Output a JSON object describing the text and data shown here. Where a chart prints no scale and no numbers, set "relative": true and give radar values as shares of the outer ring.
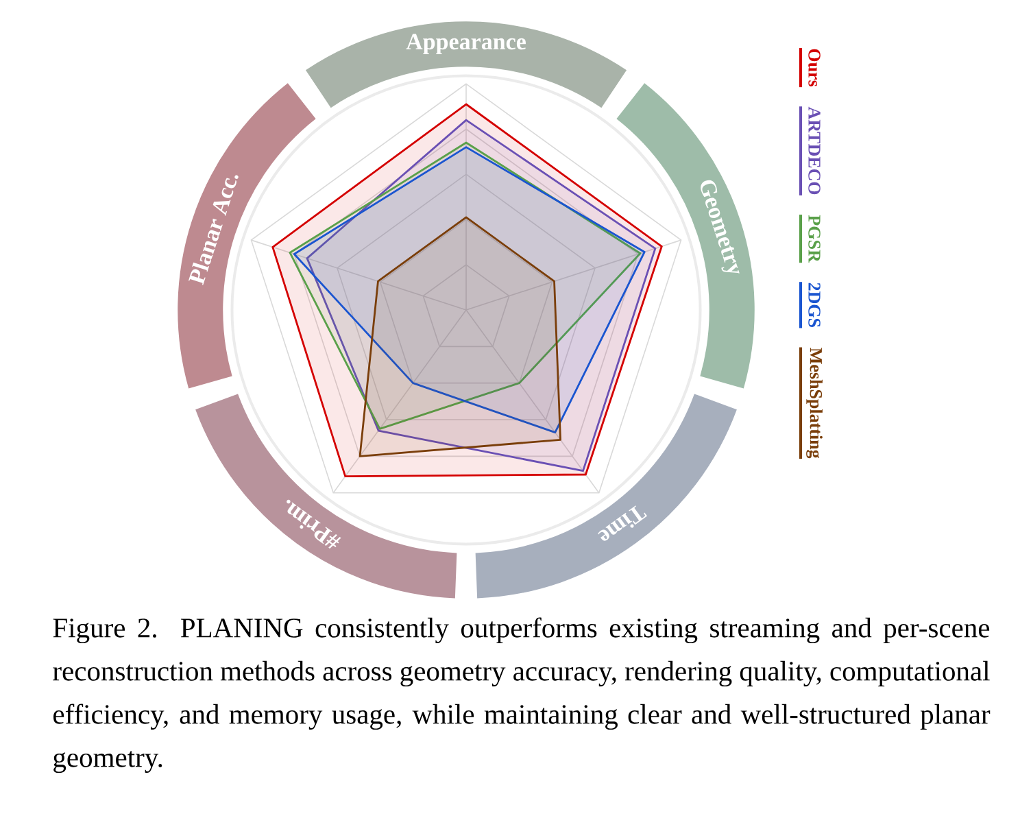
{
  "chart_data": {
    "type": "radar",
    "relative": true,
    "grid": true,
    "legend": "right",
    "categories": [
      "Appearance",
      "Geometry",
      "Time",
      "#Prim.",
      "Planar Acc."
    ],
    "series": [
      {
        "name": "Ours",
        "color": "#d40000",
        "values": [
          0.91,
          0.91,
          0.9,
          0.91,
          0.9
        ]
      },
      {
        "name": "ARTDECO",
        "color": "#6a50b4",
        "values": [
          0.84,
          0.88,
          0.88,
          0.66,
          0.74
        ]
      },
      {
        "name": "PGSR",
        "color": "#5aa04a",
        "values": [
          0.74,
          0.81,
          0.4,
          0.65,
          0.82
        ]
      },
      {
        "name": "2DGS",
        "color": "#1a55d0",
        "values": [
          0.72,
          0.83,
          0.67,
          0.4,
          0.8
        ]
      },
      {
        "name": "MeshSplatting",
        "color": "#7a3e0a",
        "values": [
          0.41,
          0.41,
          0.71,
          0.8,
          0.41
        ]
      }
    ],
    "annotations": [
      "Figure 2. PLANING consistently outperforms existing streaming and per-scene reconstruction methods across geometry accuracy, rendering quality, computational efficiency, and memory usage, while maintaining clear and well-structured planar geometry."
    ]
  }
}
